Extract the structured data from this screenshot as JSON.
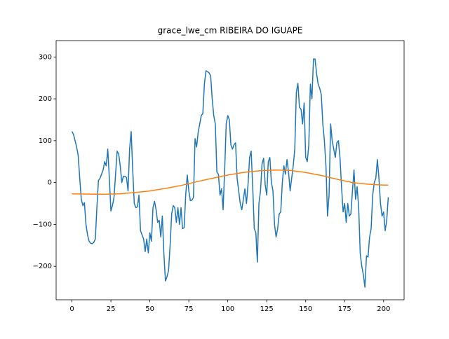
{
  "chart_data": {
    "type": "line",
    "title": "grace_lwe_cm RIBEIRA DO IGUAPE",
    "xlim": [
      -10.15,
      213.15
    ],
    "ylim": [
      -280,
      339
    ],
    "xticks": [
      0,
      25,
      50,
      75,
      100,
      125,
      150,
      175,
      200
    ],
    "yticks": [
      {
        "value": -200,
        "label": "−200"
      },
      {
        "value": -100,
        "label": "−100"
      },
      0,
      100,
      200,
      300
    ],
    "series": [
      {
        "color": "#1f77b4",
        "x": [
          0,
          1,
          2,
          3,
          4,
          5,
          6,
          7,
          8,
          9,
          10,
          11,
          12,
          13,
          14,
          15,
          16,
          17,
          18,
          19,
          20,
          21,
          22,
          23,
          24,
          25,
          26,
          27,
          28,
          29,
          30,
          31,
          32,
          33,
          34,
          35,
          36,
          37,
          38,
          39,
          40,
          41,
          42,
          43,
          44,
          45,
          46,
          47,
          48,
          49,
          50,
          51,
          52,
          53,
          54,
          55,
          56,
          57,
          58,
          59,
          60,
          61,
          62,
          63,
          64,
          65,
          66,
          67,
          68,
          69,
          70,
          71,
          72,
          73,
          74,
          75,
          76,
          77,
          78,
          79,
          80,
          81,
          82,
          83,
          84,
          85,
          86,
          87,
          88,
          89,
          90,
          91,
          92,
          93,
          94,
          95,
          96,
          97,
          98,
          99,
          100,
          101,
          102,
          103,
          104,
          105,
          106,
          107,
          108,
          109,
          110,
          111,
          112,
          113,
          114,
          115,
          116,
          117,
          118,
          119,
          120,
          121,
          122,
          123,
          124,
          125,
          126,
          127,
          128,
          129,
          130,
          131,
          132,
          133,
          134,
          135,
          136,
          137,
          138,
          139,
          140,
          141,
          142,
          143,
          144,
          145,
          146,
          147,
          148,
          149,
          150,
          151,
          152,
          153,
          154,
          155,
          156,
          157,
          158,
          159,
          160,
          161,
          162,
          163,
          164,
          165,
          166,
          167,
          168,
          169,
          170,
          171,
          172,
          173,
          174,
          175,
          176,
          177,
          178,
          179,
          180,
          181,
          182,
          183,
          184,
          185,
          186,
          187,
          188,
          189,
          190,
          191,
          192,
          193,
          194,
          195,
          196,
          197,
          198,
          199,
          200,
          201,
          202,
          203
        ],
        "values": [
          122,
          115,
          100,
          85,
          65,
          10,
          -40,
          -55,
          -48,
          -100,
          -125,
          -140,
          -145,
          -146,
          -143,
          -135,
          -60,
          5,
          10,
          20,
          30,
          50,
          40,
          80,
          10,
          -68,
          -55,
          -35,
          20,
          75,
          68,
          40,
          0,
          15,
          15,
          12,
          -20,
          80,
          122,
          30,
          -50,
          -60,
          -58,
          -30,
          -115,
          -125,
          -135,
          -165,
          -135,
          -168,
          -120,
          -140,
          -60,
          -45,
          -65,
          -95,
          -90,
          -130,
          -80,
          -170,
          -235,
          -225,
          -210,
          -150,
          -75,
          -55,
          -60,
          -95,
          -60,
          -100,
          -60,
          -110,
          -108,
          -30,
          18,
          -20,
          -43,
          -42,
          -35,
          105,
          85,
          120,
          140,
          160,
          165,
          235,
          267,
          265,
          262,
          255,
          200,
          160,
          140,
          25,
          20,
          -30,
          -15,
          -65,
          30,
          140,
          160,
          150,
          90,
          80,
          90,
          95,
          10,
          -20,
          -50,
          -65,
          -40,
          -15,
          -50,
          -5,
          60,
          75,
          -10,
          -110,
          -120,
          -190,
          -50,
          -20,
          45,
          58,
          -5,
          -30,
          50,
          60,
          0,
          -20,
          -100,
          -130,
          -110,
          -75,
          -70,
          0,
          40,
          20,
          55,
          25,
          -20,
          10,
          40,
          80,
          215,
          237,
          180,
          175,
          140,
          190,
          60,
          50,
          90,
          235,
          200,
          295,
          295,
          260,
          235,
          225,
          210,
          140,
          100,
          40,
          -80,
          -30,
          140,
          100,
          80,
          60,
          95,
          100,
          60,
          -10,
          -70,
          -50,
          -95,
          -50,
          -80,
          -75,
          -20,
          30,
          -40,
          -10,
          -60,
          -170,
          -200,
          -220,
          -250,
          -175,
          -178,
          -130,
          -110,
          -30,
          0,
          10,
          55,
          10,
          -50,
          -80,
          -70,
          -115,
          -90,
          -35
        ]
      },
      {
        "color": "#ff7f0e",
        "x": [
          0,
          10,
          20,
          30,
          40,
          50,
          60,
          70,
          80,
          90,
          100,
          110,
          120,
          130,
          140,
          150,
          160,
          170,
          180,
          190,
          200,
          203
        ],
        "values": [
          -27,
          -27.5,
          -28,
          -27,
          -24,
          -20,
          -14,
          -7,
          2,
          10,
          18,
          24,
          28,
          30,
          29,
          24,
          17,
          8,
          0,
          -4,
          -6,
          -6
        ]
      }
    ]
  }
}
